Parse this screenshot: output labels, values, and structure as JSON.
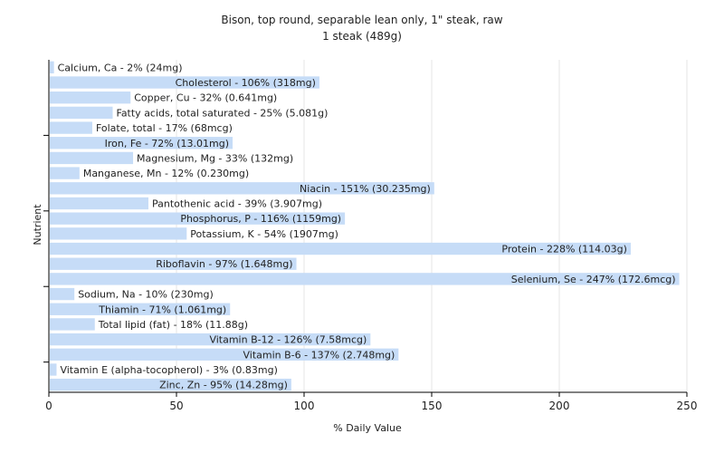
{
  "chart_data": {
    "type": "bar",
    "orientation": "horizontal",
    "title": "Bison, top round, separable lean only, 1\" steak, raw",
    "subtitle": "1 steak (489g)",
    "xlabel": "% Daily Value",
    "ylabel": "Nutrient",
    "xlim": [
      0,
      250
    ],
    "xticks": [
      0,
      50,
      100,
      150,
      200,
      250
    ],
    "grid": true,
    "bar_color": "#c6dcf7",
    "categories": [
      "Calcium, Ca",
      "Cholesterol",
      "Copper, Cu",
      "Fatty acids, total saturated",
      "Folate, total",
      "Iron, Fe",
      "Magnesium, Mg",
      "Manganese, Mn",
      "Niacin",
      "Pantothenic acid",
      "Phosphorus, P",
      "Potassium, K",
      "Protein",
      "Riboflavin",
      "Selenium, Se",
      "Sodium, Na",
      "Thiamin",
      "Total lipid (fat)",
      "Vitamin B-12",
      "Vitamin B-6",
      "Vitamin E (alpha-tocopherol)",
      "Zinc, Zn"
    ],
    "values": [
      2,
      106,
      32,
      25,
      17,
      72,
      33,
      12,
      151,
      39,
      116,
      54,
      228,
      97,
      247,
      10,
      71,
      18,
      126,
      137,
      3,
      95
    ],
    "labels": [
      "Calcium, Ca - 2% (24mg)",
      "Cholesterol - 106% (318mg)",
      "Copper, Cu - 32% (0.641mg)",
      "Fatty acids, total saturated - 25% (5.081g)",
      "Folate, total - 17% (68mcg)",
      "Iron, Fe - 72% (13.01mg)",
      "Magnesium, Mg - 33% (132mg)",
      "Manganese, Mn - 12% (0.230mg)",
      "Niacin - 151% (30.235mg)",
      "Pantothenic acid - 39% (3.907mg)",
      "Phosphorus, P - 116% (1159mg)",
      "Potassium, K - 54% (1907mg)",
      "Protein - 228% (114.03g)",
      "Riboflavin - 97% (1.648mg)",
      "Selenium, Se - 247% (172.6mcg)",
      "Sodium, Na - 10% (230mg)",
      "Thiamin - 71% (1.061mg)",
      "Total lipid (fat) - 18% (11.88g)",
      "Vitamin B-12 - 126% (7.58mcg)",
      "Vitamin B-6 - 137% (2.748mg)",
      "Vitamin E (alpha-tocopherol) - 3% (0.83mg)",
      "Zinc, Zn - 95% (14.28mg)"
    ]
  }
}
